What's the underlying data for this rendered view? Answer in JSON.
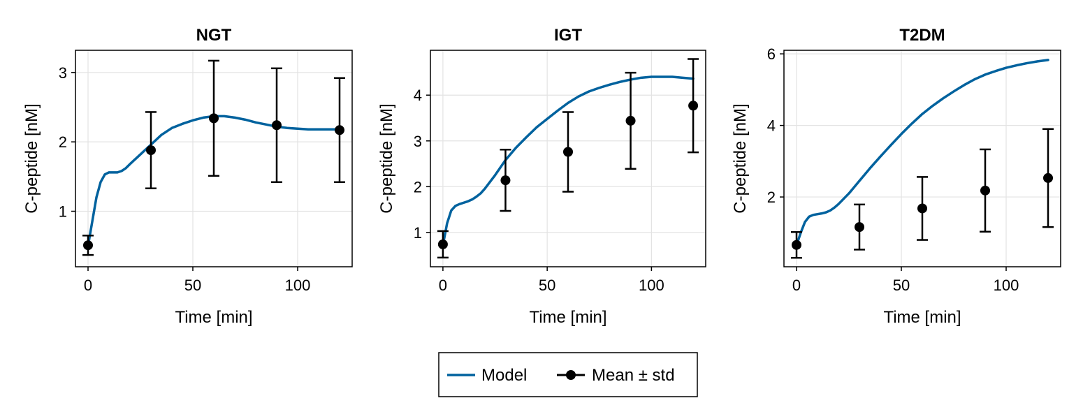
{
  "legend": {
    "model_label": "Model",
    "data_label": "Mean ± std",
    "model_color": "#00629e",
    "data_color": "#000000",
    "placement": "bottom-center"
  },
  "chart_data": [
    {
      "type": "line",
      "title": "NGT",
      "xlabel": "Time [min]",
      "ylabel": "C-peptide [nM]",
      "xlim": [
        -6,
        126
      ],
      "ylim": [
        0.2,
        3.32
      ],
      "xticks": [
        0,
        50,
        100
      ],
      "yticks": [
        1,
        2,
        3
      ],
      "grid": true,
      "model": {
        "name": "Model",
        "x": [
          0,
          2,
          4,
          6,
          8,
          10,
          12,
          14,
          16,
          18,
          20,
          25,
          30,
          35,
          40,
          45,
          50,
          55,
          60,
          65,
          70,
          75,
          80,
          85,
          90,
          95,
          100,
          105,
          110,
          115,
          120
        ],
        "y": [
          0.5,
          0.85,
          1.2,
          1.42,
          1.53,
          1.56,
          1.56,
          1.56,
          1.58,
          1.62,
          1.68,
          1.82,
          1.96,
          2.1,
          2.2,
          2.26,
          2.31,
          2.35,
          2.37,
          2.37,
          2.35,
          2.32,
          2.28,
          2.25,
          2.22,
          2.2,
          2.19,
          2.18,
          2.18,
          2.18,
          2.18
        ]
      },
      "points": {
        "name": "Mean ± std",
        "x": [
          0,
          30,
          60,
          90,
          120
        ],
        "y": [
          0.51,
          1.88,
          2.34,
          2.24,
          2.17
        ],
        "err": [
          0.14,
          0.55,
          0.83,
          0.82,
          0.75
        ]
      }
    },
    {
      "type": "line",
      "title": "IGT",
      "xlabel": "Time [min]",
      "ylabel": "C-peptide [nM]",
      "xlim": [
        -6,
        126
      ],
      "ylim": [
        0.25,
        4.98
      ],
      "xticks": [
        0,
        50,
        100
      ],
      "yticks": [
        1,
        2,
        3,
        4
      ],
      "grid": true,
      "model": {
        "name": "Model",
        "x": [
          0,
          2,
          4,
          6,
          8,
          10,
          12,
          14,
          16,
          18,
          20,
          25,
          30,
          35,
          40,
          45,
          50,
          55,
          60,
          65,
          70,
          75,
          80,
          85,
          90,
          95,
          100,
          105,
          110,
          115,
          120
        ],
        "y": [
          0.72,
          1.2,
          1.48,
          1.58,
          1.62,
          1.65,
          1.68,
          1.72,
          1.78,
          1.85,
          1.95,
          2.25,
          2.58,
          2.85,
          3.08,
          3.3,
          3.48,
          3.66,
          3.83,
          3.97,
          4.08,
          4.16,
          4.23,
          4.29,
          4.34,
          4.38,
          4.4,
          4.4,
          4.4,
          4.38,
          4.36
        ]
      },
      "points": {
        "name": "Mean ± std",
        "x": [
          0,
          30,
          60,
          90,
          120
        ],
        "y": [
          0.74,
          2.14,
          2.76,
          3.44,
          3.77
        ],
        "err": [
          0.29,
          0.67,
          0.87,
          1.05,
          1.02
        ]
      }
    },
    {
      "type": "line",
      "title": "T2DM",
      "xlabel": "Time [min]",
      "ylabel": "C-peptide [nM]",
      "xlim": [
        -6,
        126
      ],
      "ylim": [
        0.05,
        6.1
      ],
      "xticks": [
        0,
        50,
        100
      ],
      "yticks": [
        2,
        4,
        6
      ],
      "grid": true,
      "model": {
        "name": "Model",
        "x": [
          0,
          2,
          4,
          6,
          8,
          10,
          12,
          14,
          16,
          18,
          20,
          25,
          30,
          35,
          40,
          45,
          50,
          55,
          60,
          65,
          70,
          75,
          80,
          85,
          90,
          95,
          100,
          105,
          110,
          115,
          120
        ],
        "y": [
          0.65,
          1.0,
          1.3,
          1.45,
          1.5,
          1.52,
          1.54,
          1.57,
          1.62,
          1.7,
          1.8,
          2.1,
          2.45,
          2.8,
          3.13,
          3.45,
          3.76,
          4.05,
          4.32,
          4.55,
          4.76,
          4.95,
          5.13,
          5.29,
          5.42,
          5.52,
          5.61,
          5.68,
          5.74,
          5.79,
          5.83
        ]
      },
      "points": {
        "name": "Mean ± std",
        "x": [
          0,
          30,
          60,
          90,
          120
        ],
        "y": [
          0.66,
          1.16,
          1.68,
          2.18,
          2.53
        ],
        "err": [
          0.36,
          0.63,
          0.88,
          1.15,
          1.37
        ]
      }
    }
  ]
}
